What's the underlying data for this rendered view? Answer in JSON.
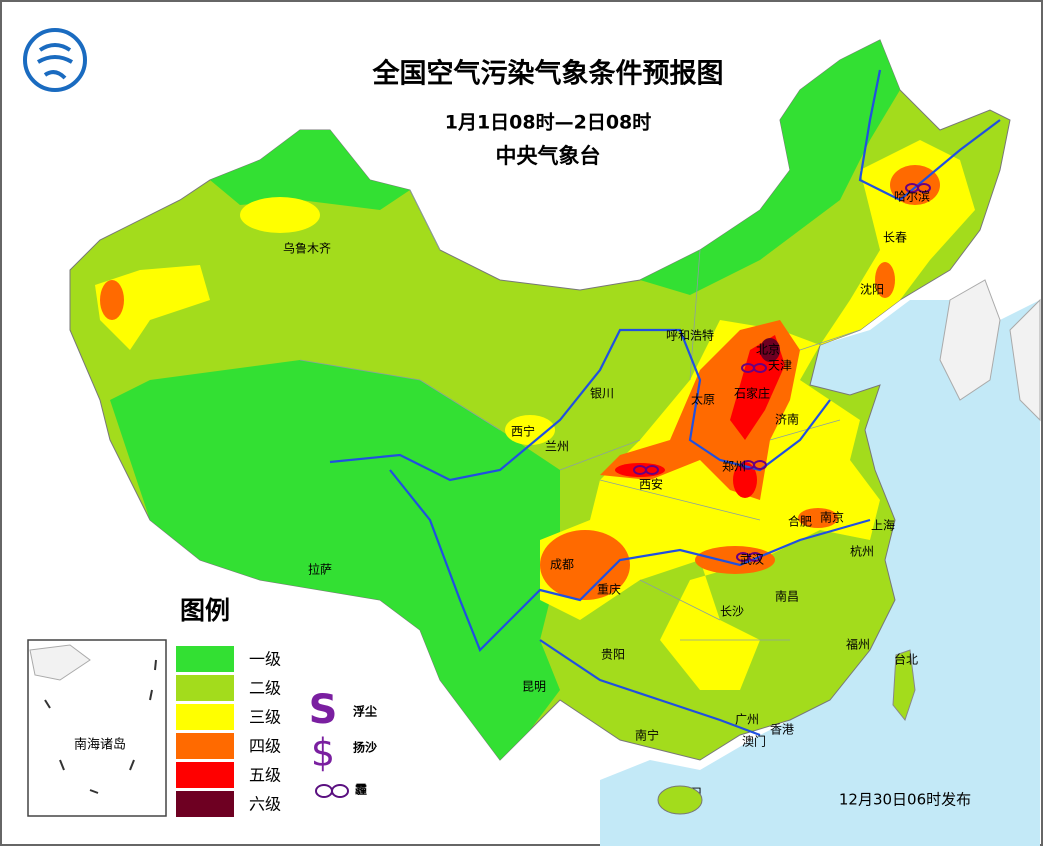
{
  "header": {
    "title": "全国空气污染气象条件预报图",
    "period": "1月1日08时—2日08时",
    "issuer": "中央气象台"
  },
  "cities": [
    "乌鲁木齐",
    "哈尔滨",
    "长春",
    "沈阳",
    "呼和浩特",
    "北京",
    "天津",
    "石家庄",
    "太原",
    "济南",
    "银川",
    "西宁",
    "兰州",
    "西安",
    "郑州",
    "合肥",
    "南京",
    "上海",
    "杭州",
    "成都",
    "重庆",
    "武汉",
    "长沙",
    "南昌",
    "福州",
    "台北",
    "拉萨",
    "贵阳",
    "昆明",
    "南宁",
    "广州",
    "香港",
    "澳门",
    "海口"
  ],
  "legend": {
    "title": "图例",
    "levels": [
      {
        "label": "一级",
        "color": "#33e033"
      },
      {
        "label": "二级",
        "color": "#a3dc1c"
      },
      {
        "label": "三级",
        "color": "#ffff00"
      },
      {
        "label": "四级",
        "color": "#ff6a00"
      },
      {
        "label": "五级",
        "color": "#ff0000"
      },
      {
        "label": "六级",
        "color": "#6e0022"
      }
    ],
    "symbols": [
      {
        "icon": "S",
        "label": "浮尘"
      },
      {
        "icon": "$",
        "label": "扬沙"
      },
      {
        "label": "霾"
      }
    ]
  },
  "inset": "南海诸岛",
  "issued": "12月30日06时发布"
}
